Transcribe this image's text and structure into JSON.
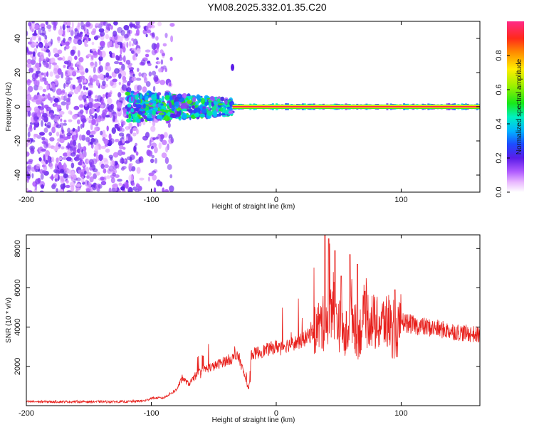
{
  "title": "YM08.2025.332.01.35.C20",
  "colors": {
    "snr_line": "#e8201c",
    "spectrogram_noise": "#6a1bd8",
    "spectrogram_signal": "#ff2a1a"
  },
  "chart_data": [
    {
      "type": "heatmap",
      "title": "YM08.2025.332.01.35.C20",
      "xlabel": "Height of straight line (km)",
      "ylabel": "Frequency (Hz)",
      "xlim": [
        -200,
        163
      ],
      "ylim": [
        -50,
        50
      ],
      "x_ticks": [
        -200,
        -100,
        0,
        100
      ],
      "x_tick_labels": [
        "-200",
        "-100",
        "0",
        "100"
      ],
      "y_ticks": [
        -40,
        -20,
        0,
        20,
        40
      ],
      "y_tick_labels": [
        "-40",
        "-20",
        "0",
        "20",
        "40"
      ],
      "colorbar": {
        "label": "Normalized spectral amplitude",
        "range": [
          0,
          1
        ],
        "ticks": [
          0.0,
          0.2,
          0.4,
          0.6,
          0.8
        ],
        "tick_labels": [
          "0.0",
          "0.2",
          "0.4",
          "0.6",
          "0.8"
        ]
      },
      "features": [
        {
          "name": "noise",
          "x_range": [
            -200,
            -95
          ],
          "freq_range": [
            -50,
            50
          ],
          "amplitude": 0.15
        },
        {
          "name": "onset-band",
          "x_range": [
            -120,
            -35
          ],
          "freq_range": [
            -10,
            8
          ],
          "amplitude": 0.45
        },
        {
          "name": "carrier",
          "x_range": [
            -35,
            163
          ],
          "freq_center": 0,
          "amplitude": 0.95
        },
        {
          "name": "spur",
          "x": -35,
          "freq": 23,
          "amplitude": 0.2
        }
      ]
    },
    {
      "type": "line",
      "xlabel": "Height of straight line (km)",
      "ylabel": "SNR (10 * v/v)",
      "xlim": [
        -200,
        163
      ],
      "ylim": [
        0,
        8700
      ],
      "x_ticks": [
        -200,
        -100,
        0,
        100
      ],
      "x_tick_labels": [
        "-200",
        "-100",
        "0",
        "100"
      ],
      "y_ticks": [
        2000,
        4000,
        6000,
        8000
      ],
      "y_tick_labels": [
        "2000",
        "4000",
        "6000",
        "8000"
      ],
      "series": [
        {
          "name": "SNR",
          "x": [
            -200,
            -180,
            -160,
            -140,
            -120,
            -105,
            -100,
            -90,
            -80,
            -75,
            -70,
            -60,
            -50,
            -40,
            -30,
            -22,
            -20,
            -10,
            0,
            10,
            20,
            25,
            30,
            35,
            40,
            45,
            50,
            55,
            60,
            65,
            70,
            75,
            80,
            85,
            90,
            95,
            100,
            110,
            120,
            130,
            140,
            150,
            163
          ],
          "values": [
            200,
            200,
            200,
            200,
            200,
            250,
            380,
            400,
            800,
            1400,
            1100,
            1800,
            2000,
            2300,
            2500,
            800,
            2600,
            2800,
            3000,
            3100,
            3300,
            3500,
            3800,
            4100,
            4200,
            5500,
            4200,
            3300,
            5000,
            3500,
            4300,
            4500,
            4100,
            4200,
            4300,
            3300,
            4300,
            4100,
            4000,
            3900,
            3800,
            3700,
            3600
          ],
          "peaks": [
            {
              "x": 39,
              "value": 8700
            },
            {
              "x": 42,
              "value": 8500
            },
            {
              "x": 47,
              "value": 7900
            },
            {
              "x": 59,
              "value": 7700
            },
            {
              "x": 65,
              "value": 7200
            },
            {
              "x": 52,
              "value": 6600
            },
            {
              "x": 95,
              "value": 5900
            }
          ]
        }
      ]
    }
  ]
}
